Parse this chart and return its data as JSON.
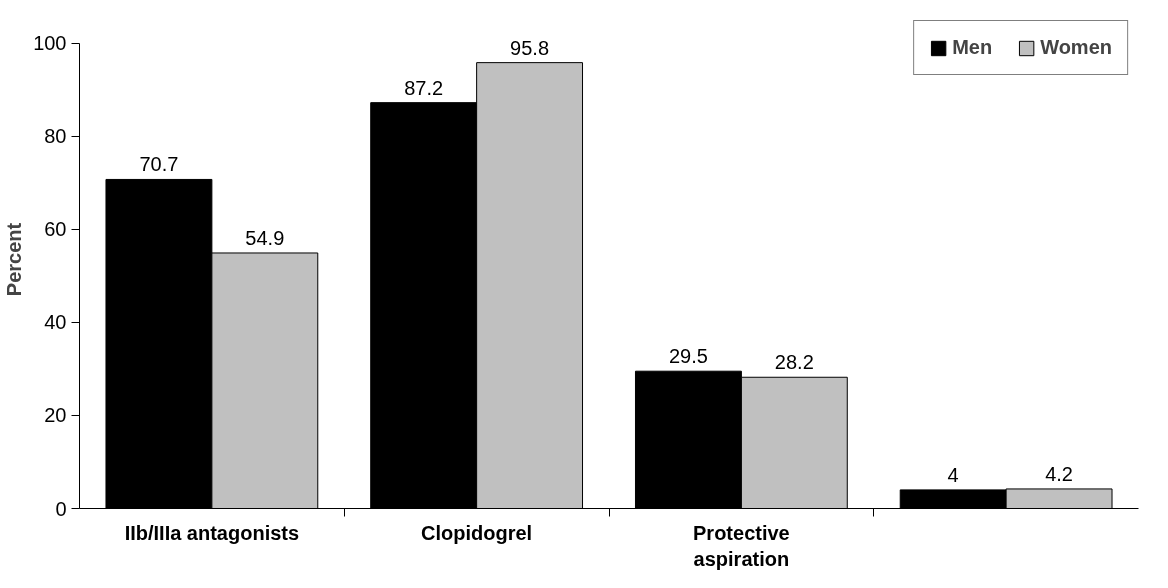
{
  "chart_data": {
    "type": "bar",
    "ylabel": "Percent",
    "categories": [
      "IIb/IIIa antagonists",
      "Clopidogrel",
      "Protective aspiration",
      null
    ],
    "series": [
      {
        "name": "Men",
        "color": "#000000",
        "values": [
          70.7,
          87.2,
          29.5,
          4
        ]
      },
      {
        "name": "Women",
        "color": "#c0c0c0",
        "values": [
          54.9,
          95.8,
          28.2,
          4.2
        ]
      }
    ],
    "ylim": [
      0,
      100
    ],
    "yticks": [
      0,
      20,
      40,
      60,
      80,
      100
    ],
    "data_labels": true,
    "legend": "top right",
    "grid": false
  }
}
